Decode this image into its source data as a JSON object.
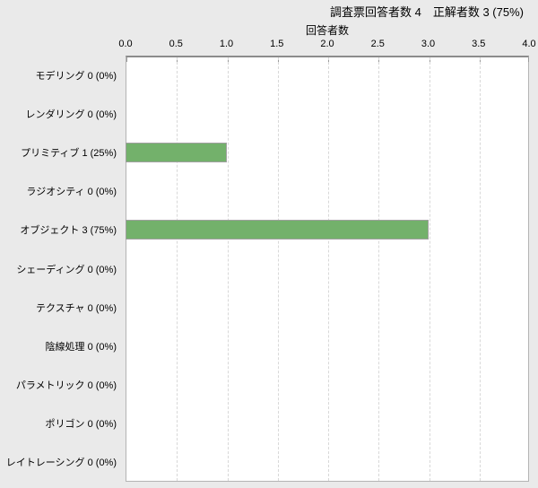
{
  "chart_data": {
    "type": "bar",
    "orientation": "horizontal",
    "title": "調査票回答者数 4　正解者数 3 (75%)",
    "xlabel": "回答者数",
    "ylabel": "",
    "xlim": [
      0.0,
      4.0
    ],
    "x_ticks": [
      0.0,
      0.5,
      1.0,
      1.5,
      2.0,
      2.5,
      3.0,
      3.5,
      4.0
    ],
    "x_tick_labels": [
      "0.0",
      "0.5",
      "1.0",
      "1.5",
      "2.0",
      "2.5",
      "3.0",
      "3.5",
      "4.0"
    ],
    "categories": [
      "モデリング",
      "レンダリング",
      "プリミティブ",
      "ラジオシティ",
      "オブジェクト",
      "シェーディング",
      "テクスチャ",
      "陰線処理",
      "パラメトリック",
      "ポリゴン",
      "レイトレーシング"
    ],
    "values": [
      0,
      0,
      1,
      0,
      3,
      0,
      0,
      0,
      0,
      0,
      0
    ],
    "percents": [
      "0%",
      "0%",
      "25%",
      "0%",
      "75%",
      "0%",
      "0%",
      "0%",
      "0%",
      "0%",
      "0%"
    ],
    "row_labels": [
      "モデリング 0 (0%)",
      "レンダリング 0 (0%)",
      "プリミティブ 1 (25%)",
      "ラジオシティ 0 (0%)",
      "オブジェクト 3 (75%)",
      "シェーディング 0 (0%)",
      "テクスチャ 0 (0%)",
      "陰線処理 0 (0%)",
      "パラメトリック 0 (0%)",
      "ポリゴン 0 (0%)",
      "レイトレーシング 0 (0%)"
    ],
    "survey_total_respondents": 4,
    "survey_correct_count": 3,
    "survey_correct_percent": "75%",
    "grid": "vertical-dashed",
    "legend": "none",
    "colors": {
      "bar_fill": "#73b16b",
      "bar_border": "#a0a0a0",
      "background": "#eaeaea",
      "plot_background": "#ffffff",
      "gridline": "#d8d8d8",
      "axis_line": "#8c8c8c",
      "plot_border": "#b4b4b4",
      "text": "#000000"
    }
  }
}
